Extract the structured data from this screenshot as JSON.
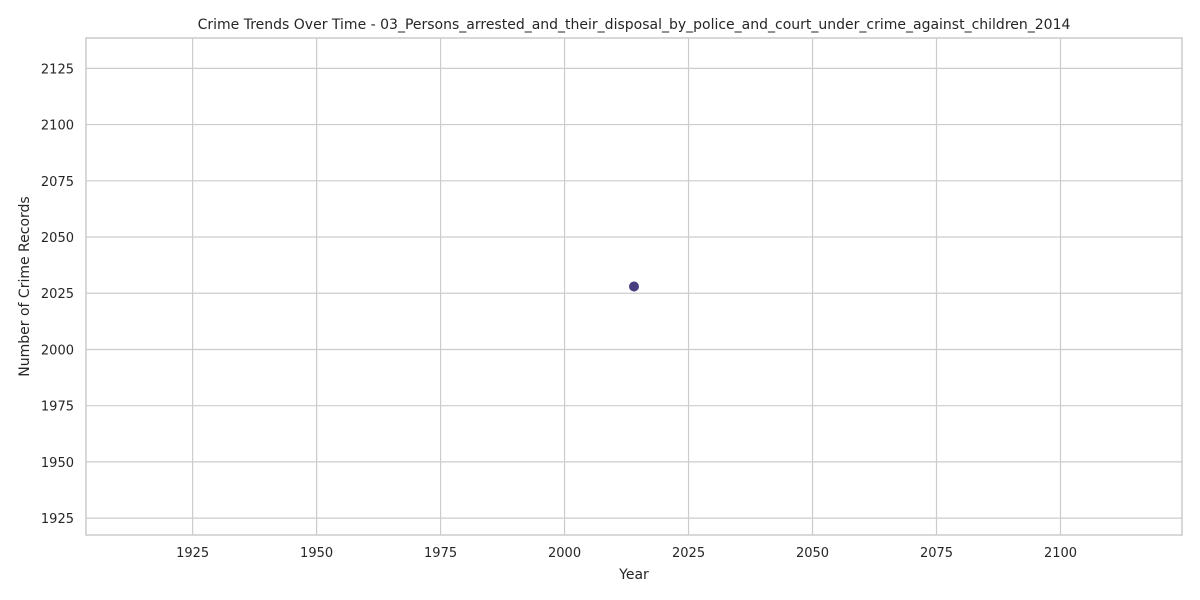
{
  "chart_data": {
    "type": "scatter",
    "title": "Crime Trends Over Time - 03_Persons_arrested_and_their_disposal_by_police_and_court_under_crime_against_children_2014",
    "xlabel": "Year",
    "ylabel": "Number of Crime Records",
    "xlim": [
      1903.5,
      2124.5
    ],
    "ylim": [
      1917.5,
      2138.5
    ],
    "x_ticks": [
      1925,
      1950,
      1975,
      2000,
      2025,
      2050,
      2075,
      2100
    ],
    "y_ticks": [
      1925,
      1950,
      1975,
      2000,
      2025,
      2050,
      2075,
      2100,
      2125
    ],
    "grid": true,
    "legend": "none",
    "series": [
      {
        "color": "#483d7f",
        "points": [
          {
            "x": 2014,
            "y": 2028
          }
        ]
      }
    ]
  }
}
